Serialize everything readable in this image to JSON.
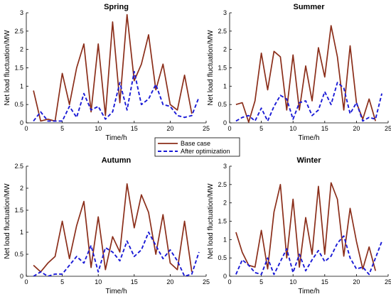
{
  "chart_data": [
    {
      "type": "line",
      "title": "Spring",
      "xlabel": "Time/h",
      "ylabel": "Net load fluctuation/MW",
      "xlim": [
        0,
        25
      ],
      "ylim": [
        0,
        3
      ],
      "xticks": [
        "0",
        "5",
        "10",
        "15",
        "20",
        "25"
      ],
      "yticks": [
        "0",
        "0.5",
        "1",
        "1.5",
        "2",
        "2.5",
        "3"
      ],
      "grid": false,
      "x": [
        1,
        2,
        3,
        4,
        5,
        6,
        7,
        8,
        9,
        10,
        11,
        12,
        13,
        14,
        15,
        16,
        17,
        18,
        19,
        20,
        21,
        22,
        23,
        24
      ],
      "series": [
        {
          "name": "Base case",
          "color": "#8b2e1a",
          "style": "solid",
          "values": [
            0.88,
            0.05,
            0.1,
            0.05,
            1.35,
            0.5,
            1.5,
            2.15,
            0.3,
            2.15,
            0.2,
            2.75,
            0.55,
            2.95,
            1.15,
            1.6,
            2.4,
            0.9,
            1.6,
            0.5,
            0.35,
            1.3,
            0.25,
            null
          ]
        },
        {
          "name": "After optimization",
          "color": "#1a1ad6",
          "style": "dashed",
          "values": [
            0.05,
            0.3,
            0.05,
            0.05,
            0.05,
            0.45,
            0.15,
            0.8,
            0.35,
            0.45,
            0.1,
            0.3,
            1.1,
            0.35,
            1.4,
            0.5,
            0.65,
            1.05,
            0.5,
            0.45,
            0.2,
            0.15,
            0.2,
            0.7
          ]
        }
      ]
    },
    {
      "type": "line",
      "title": "Summer",
      "xlabel": "Time/h",
      "ylabel": "Net load fluctuation/MW",
      "xlim": [
        0,
        25
      ],
      "ylim": [
        0,
        3
      ],
      "xticks": [
        "0",
        "5",
        "10",
        "15",
        "20",
        "25"
      ],
      "yticks": [
        "0",
        "0.5",
        "1",
        "1.5",
        "2",
        "2.5",
        "3"
      ],
      "grid": false,
      "x": [
        1,
        2,
        3,
        4,
        5,
        6,
        7,
        8,
        9,
        10,
        11,
        12,
        13,
        14,
        15,
        16,
        17,
        18,
        19,
        20,
        21,
        22,
        23,
        24
      ],
      "series": [
        {
          "name": "Base case",
          "color": "#8b2e1a",
          "style": "solid",
          "values": [
            0.5,
            0.55,
            0.02,
            0.6,
            1.9,
            0.9,
            1.95,
            1.8,
            0.35,
            1.85,
            0.35,
            1.55,
            0.6,
            2.05,
            1.25,
            2.65,
            1.8,
            0.35,
            2.1,
            0.55,
            0.1,
            0.65,
            0.05,
            null
          ]
        },
        {
          "name": "After optimization",
          "color": "#1a1ad6",
          "style": "dashed",
          "values": [
            0.05,
            0.15,
            0.2,
            0.05,
            0.4,
            0.05,
            0.45,
            0.75,
            0.65,
            0.1,
            0.55,
            0.6,
            0.2,
            0.35,
            0.85,
            0.5,
            1.1,
            0.95,
            0.25,
            0.55,
            0.05,
            0.15,
            0.1,
            0.8
          ]
        }
      ]
    },
    {
      "type": "line",
      "title": "Autumn",
      "xlabel": "Time/h",
      "ylabel": "Net load fluctuation/MW",
      "xlim": [
        0,
        25
      ],
      "ylim": [
        0,
        2.5
      ],
      "xticks": [
        "0",
        "5",
        "10",
        "15",
        "20",
        "25"
      ],
      "yticks": [
        "0",
        "0.5",
        "1",
        "1.5",
        "2",
        "2.5"
      ],
      "grid": false,
      "x": [
        1,
        2,
        3,
        4,
        5,
        6,
        7,
        8,
        9,
        10,
        11,
        12,
        13,
        14,
        15,
        16,
        17,
        18,
        19,
        20,
        21,
        22,
        23,
        24
      ],
      "series": [
        {
          "name": "Base case",
          "color": "#8b2e1a",
          "style": "solid",
          "values": [
            0.25,
            0.1,
            0.3,
            0.45,
            1.25,
            0.4,
            1.15,
            1.7,
            0.2,
            1.35,
            0.15,
            0.9,
            0.55,
            2.1,
            1.1,
            1.85,
            1.45,
            0.5,
            1.4,
            0.3,
            0.15,
            1.25,
            0.1,
            null
          ]
        },
        {
          "name": "After optimization",
          "color": "#1a1ad6",
          "style": "dashed",
          "values": [
            0.0,
            0.1,
            0.0,
            0.05,
            0.05,
            0.25,
            0.45,
            0.3,
            0.7,
            0.1,
            0.65,
            0.55,
            0.35,
            0.8,
            0.45,
            0.6,
            1.0,
            0.7,
            0.4,
            0.6,
            0.35,
            0.0,
            0.05,
            0.55
          ]
        }
      ]
    },
    {
      "type": "line",
      "title": "Winter",
      "xlabel": "Time/h",
      "ylabel": "Net load fluctuation/MW",
      "xlim": [
        0,
        25
      ],
      "ylim": [
        0,
        3
      ],
      "xticks": [
        "0",
        "5",
        "10",
        "15",
        "20",
        "25"
      ],
      "yticks": [
        "0",
        "0.5",
        "1",
        "1.5",
        "2",
        "2.5",
        "3"
      ],
      "grid": false,
      "x": [
        1,
        2,
        3,
        4,
        5,
        6,
        7,
        8,
        9,
        10,
        11,
        12,
        13,
        14,
        15,
        16,
        17,
        18,
        19,
        20,
        21,
        22,
        23,
        24
      ],
      "series": [
        {
          "name": "Base case",
          "color": "#8b2e1a",
          "style": "solid",
          "values": [
            1.2,
            0.65,
            0.3,
            0.25,
            1.25,
            0.2,
            1.75,
            2.5,
            0.5,
            2.1,
            0.25,
            1.6,
            0.6,
            2.45,
            0.6,
            2.55,
            2.1,
            0.55,
            1.85,
            0.95,
            0.2,
            0.8,
            0.15,
            null
          ]
        },
        {
          "name": "After optimization",
          "color": "#1a1ad6",
          "style": "dashed",
          "values": [
            0.05,
            0.45,
            0.3,
            0.1,
            0.05,
            0.5,
            0.05,
            0.4,
            0.75,
            0.1,
            0.6,
            0.15,
            0.45,
            0.7,
            0.4,
            0.55,
            0.9,
            1.1,
            0.5,
            0.2,
            0.25,
            0.05,
            0.5,
            0.95
          ]
        }
      ]
    }
  ],
  "legend": {
    "entries": [
      {
        "label": "Base case",
        "color": "#8b2e1a",
        "style": "solid"
      },
      {
        "label": "After optimization",
        "color": "#1a1ad6",
        "style": "dashed"
      }
    ],
    "position": "center"
  }
}
